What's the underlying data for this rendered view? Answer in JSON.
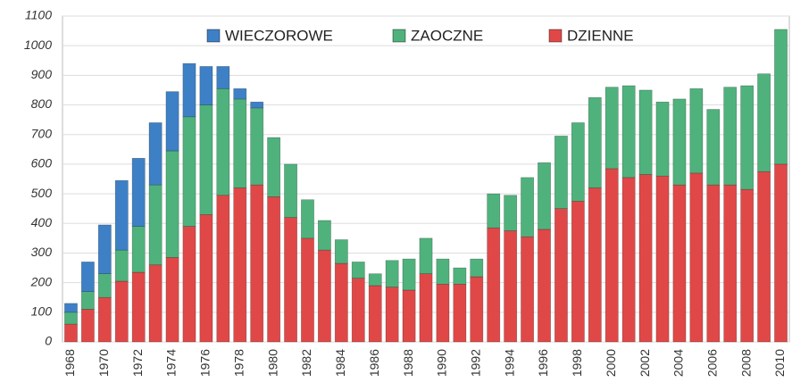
{
  "chart_data": {
    "type": "bar",
    "stacked": true,
    "categories": [
      "1968",
      null,
      "1970",
      null,
      "1972",
      null,
      "1974",
      null,
      "1976",
      null,
      "1978",
      null,
      "1980",
      null,
      "1982",
      null,
      "1984",
      null,
      "1986",
      null,
      "1988",
      null,
      "1990",
      null,
      "1992",
      null,
      "1994",
      null,
      "1996",
      null,
      "1998",
      null,
      "2000",
      null,
      "2002",
      null,
      "2004",
      null,
      "2006",
      null,
      "2008",
      null,
      "2010"
    ],
    "series": [
      {
        "name": "DZIENNE",
        "color": "#e04848",
        "values": [
          60,
          110,
          150,
          205,
          235,
          260,
          285,
          390,
          430,
          495,
          520,
          530,
          490,
          420,
          350,
          310,
          265,
          215,
          190,
          185,
          175,
          230,
          195,
          195,
          220,
          385,
          375,
          355,
          380,
          450,
          475,
          520,
          585,
          555,
          565,
          560,
          530,
          570,
          530,
          530,
          515,
          575,
          600
        ]
      },
      {
        "name": "ZAOCZNE",
        "color": "#4fb27c",
        "values": [
          40,
          60,
          80,
          105,
          155,
          270,
          360,
          370,
          370,
          360,
          300,
          260,
          200,
          180,
          130,
          100,
          80,
          55,
          40,
          90,
          105,
          120,
          85,
          55,
          60,
          115,
          120,
          200,
          225,
          245,
          265,
          305,
          275,
          310,
          285,
          250,
          290,
          285,
          255,
          330,
          350,
          330,
          455
        ]
      },
      {
        "name": "WIECZOROWE",
        "color": "#3d80c6",
        "values": [
          30,
          100,
          165,
          235,
          230,
          210,
          200,
          180,
          130,
          75,
          35,
          20,
          0,
          0,
          0,
          0,
          0,
          0,
          0,
          0,
          0,
          0,
          0,
          0,
          0,
          0,
          0,
          0,
          0,
          0,
          0,
          0,
          0,
          0,
          0,
          0,
          0,
          0,
          0,
          0,
          0,
          0,
          0
        ]
      }
    ],
    "ylim": [
      0,
      1100
    ],
    "yticks": [
      0,
      100,
      200,
      300,
      400,
      500,
      600,
      700,
      800,
      900,
      1000,
      1100
    ],
    "grid": true,
    "legend": "top"
  }
}
